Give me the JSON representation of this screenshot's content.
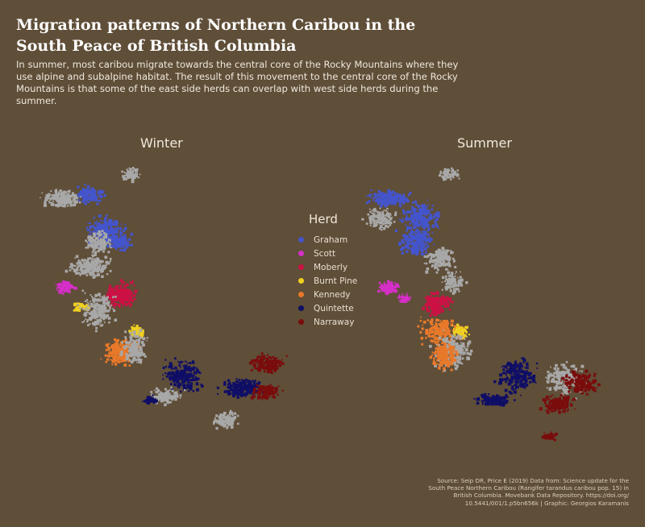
{
  "title": "Migration patterns of Northern Caribou in the South Peace of British Columbia",
  "subtitle": "In summer, most caribou migrate towards the central core of the Rocky Mountains where they use alpine and subalpine habitat. The result of this movement to the central core of the Rocky Mountains is that some of the east side herds can overlap with west side herds during the summer.",
  "panels": {
    "winter": "Winter",
    "summer": "Summer"
  },
  "legend": {
    "title": "Herd",
    "items": [
      {
        "name": "Graham",
        "color": "#4455cc"
      },
      {
        "name": "Scott",
        "color": "#d62fc8"
      },
      {
        "name": "Moberly",
        "color": "#cc1144"
      },
      {
        "name": "Burnt Pine",
        "color": "#f0d020"
      },
      {
        "name": "Kennedy",
        "color": "#e8792a"
      },
      {
        "name": "Quintette",
        "color": "#0f0e66"
      },
      {
        "name": "Narraway",
        "color": "#7a0c0c"
      }
    ]
  },
  "background_track_color": "#a8a8a8",
  "source": "Source: Seip DR, Price E (2019) Data from: Science update for the South Peace Northern Caribou (Rangifer tarandus caribou pop. 15) in British Columbia. Movebank Data Repository. https://doi.org/ 10.5441/001/1.p5bn656k | Graphic: Georgios Karamanis"
}
